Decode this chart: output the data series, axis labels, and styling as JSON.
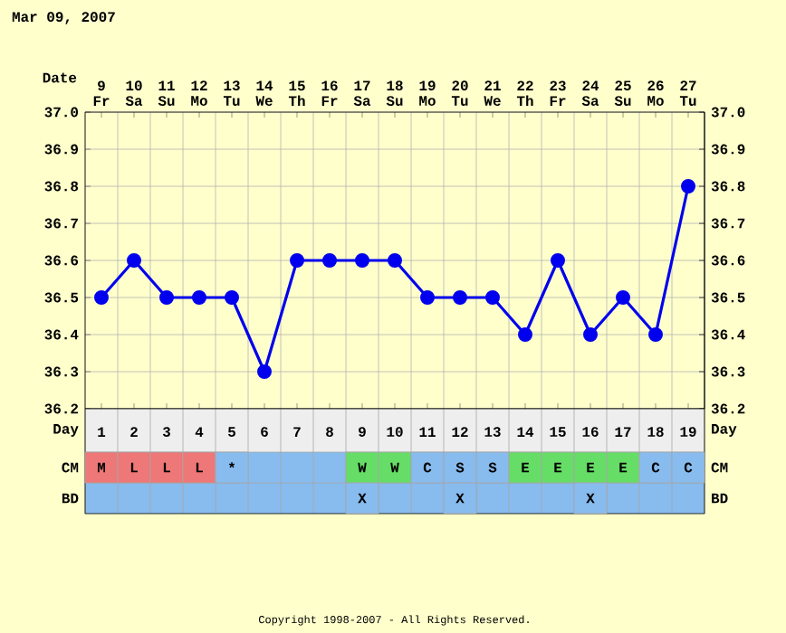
{
  "chart_data": [
    {
      "type": "line",
      "title": "Mar 09, 2007",
      "xlabel": "Date",
      "categories": [
        "9 Fr",
        "10 Sa",
        "11 Su",
        "12 Mo",
        "13 Tu",
        "14 We",
        "15 Th",
        "16 Fr",
        "17 Sa",
        "18 Su",
        "19 Mo",
        "20 Tu",
        "21 We",
        "22 Th",
        "23 Fr",
        "24 Sa",
        "25 Su",
        "26 Mo",
        "27 Tu"
      ],
      "series": [
        {
          "color": "#0000ee",
          "values": [
            36.5,
            36.6,
            36.5,
            36.5,
            36.5,
            36.3,
            36.6,
            36.6,
            36.6,
            36.6,
            36.5,
            36.5,
            36.5,
            36.4,
            36.6,
            36.4,
            36.5,
            36.4,
            36.8
          ]
        }
      ],
      "ylim": [
        36.2,
        37.0
      ],
      "yticks": [
        36.2,
        36.3,
        36.4,
        36.5,
        36.6,
        36.7,
        36.8,
        36.9,
        {
          "value": 37.0,
          "label": "37.0"
        }
      ],
      "y2lim": [
        36.2,
        37.0
      ],
      "y2ticks": [
        36.2,
        36.3,
        36.4,
        36.5,
        36.6,
        36.7,
        36.8,
        36.9,
        {
          "value": 37.0,
          "label": "37.0"
        }
      ],
      "grid": true,
      "marker": "circle",
      "line_style": "solid"
    },
    {
      "type": "heatmap",
      "xlabel": "Day",
      "categories": [
        "1",
        "2",
        "3",
        "4",
        "5",
        "6",
        "7",
        "8",
        "9",
        "10",
        "11",
        "12",
        "13",
        "14",
        "15",
        "16",
        "17",
        "18",
        "19"
      ],
      "y_categories": [
        "CM",
        "BD"
      ],
      "y2_categories": [
        "CM",
        "BD"
      ],
      "cells": [
        [
          "M",
          "L",
          "L",
          "L",
          "*",
          null,
          null,
          null,
          "W",
          "W",
          "C",
          "S",
          "S",
          "E",
          "E",
          "E",
          "E",
          "C",
          "C"
        ],
        [
          null,
          null,
          null,
          null,
          null,
          null,
          null,
          null,
          "X",
          null,
          null,
          "X",
          null,
          null,
          null,
          "X",
          null,
          null,
          null
        ]
      ],
      "colors": [
        [
          "#ee7777",
          "#ee7777",
          "#ee7777",
          "#ee7777",
          "#88bbee",
          null,
          null,
          null,
          "#66dd66",
          "#66dd66",
          "#88bbee",
          "#88bbee",
          "#88bbee",
          "#66dd66",
          "#66dd66",
          "#66dd66",
          "#66dd66",
          "#88bbee",
          "#88bbee"
        ],
        [
          null,
          null,
          null,
          null,
          null,
          null,
          null,
          null,
          "#88bbee",
          null,
          null,
          "#88bbee",
          null,
          null,
          null,
          "#88bbee",
          null,
          null,
          null
        ]
      ],
      "grid": true,
      "annotations": [
        "Copyright 1998-2007 - All Rights Reserved."
      ]
    }
  ]
}
